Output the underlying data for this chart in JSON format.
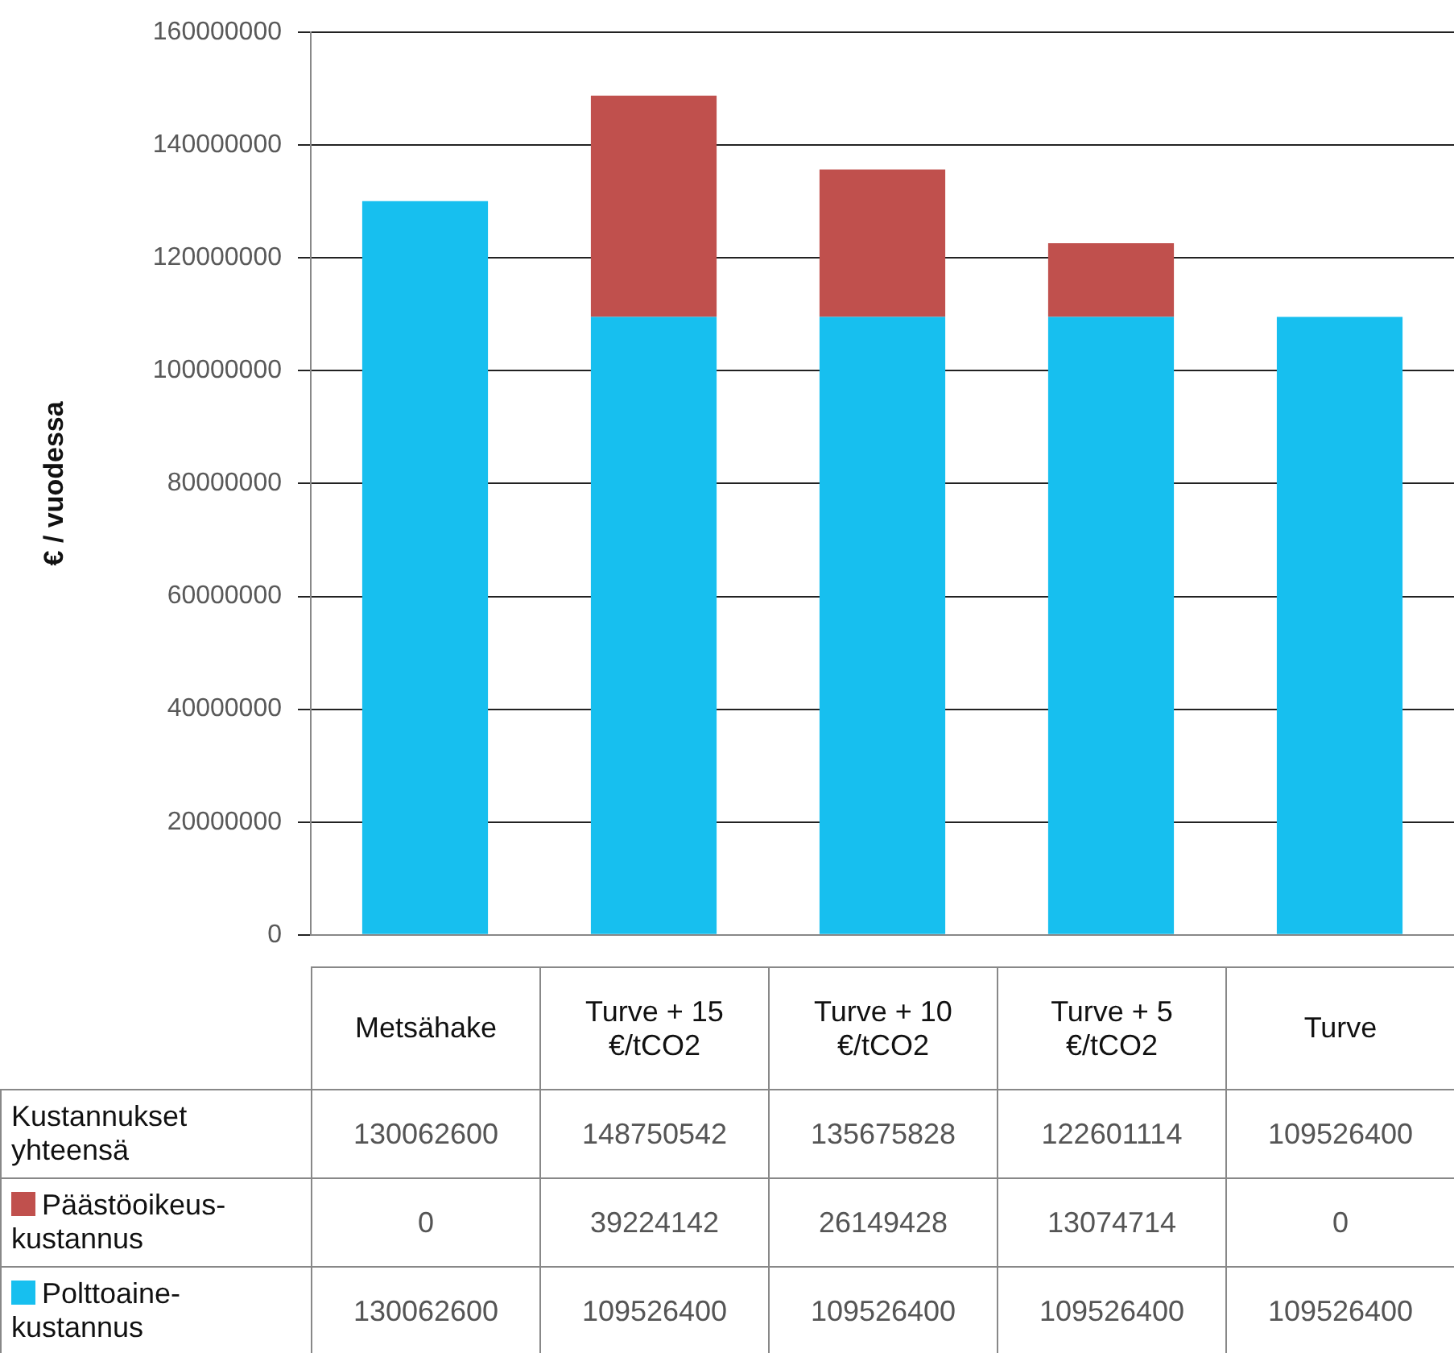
{
  "chart_data": {
    "type": "bar",
    "ylabel": "€ / vuodessa",
    "categories": [
      "Metsähake",
      "Turve + 15 €/tCO2",
      "Turve + 10 €/tCO2",
      "Turve + 5 €/tCO2",
      "Turve"
    ],
    "series": [
      {
        "name": "Polttoaine-kustannus",
        "color": "#17bfef",
        "values": [
          130062600,
          109526400,
          109526400,
          109526400,
          109526400
        ]
      },
      {
        "name": "Päästöoikeus-kustannus",
        "color": "#c0504d",
        "values": [
          0,
          39224142,
          26149428,
          13074714,
          0
        ]
      }
    ],
    "stacked": true,
    "annotations": [
      "Kustannukset yhteensä",
      "130062600",
      "148750542",
      "135675828",
      "122601114",
      "109526400"
    ],
    "data_labels": true,
    "ylim": [
      0,
      160000000
    ],
    "yticks": [
      0,
      20000000,
      40000000,
      60000000,
      80000000,
      100000000,
      120000000,
      140000000,
      160000000
    ],
    "grid": "y",
    "legend": "bottom"
  }
}
